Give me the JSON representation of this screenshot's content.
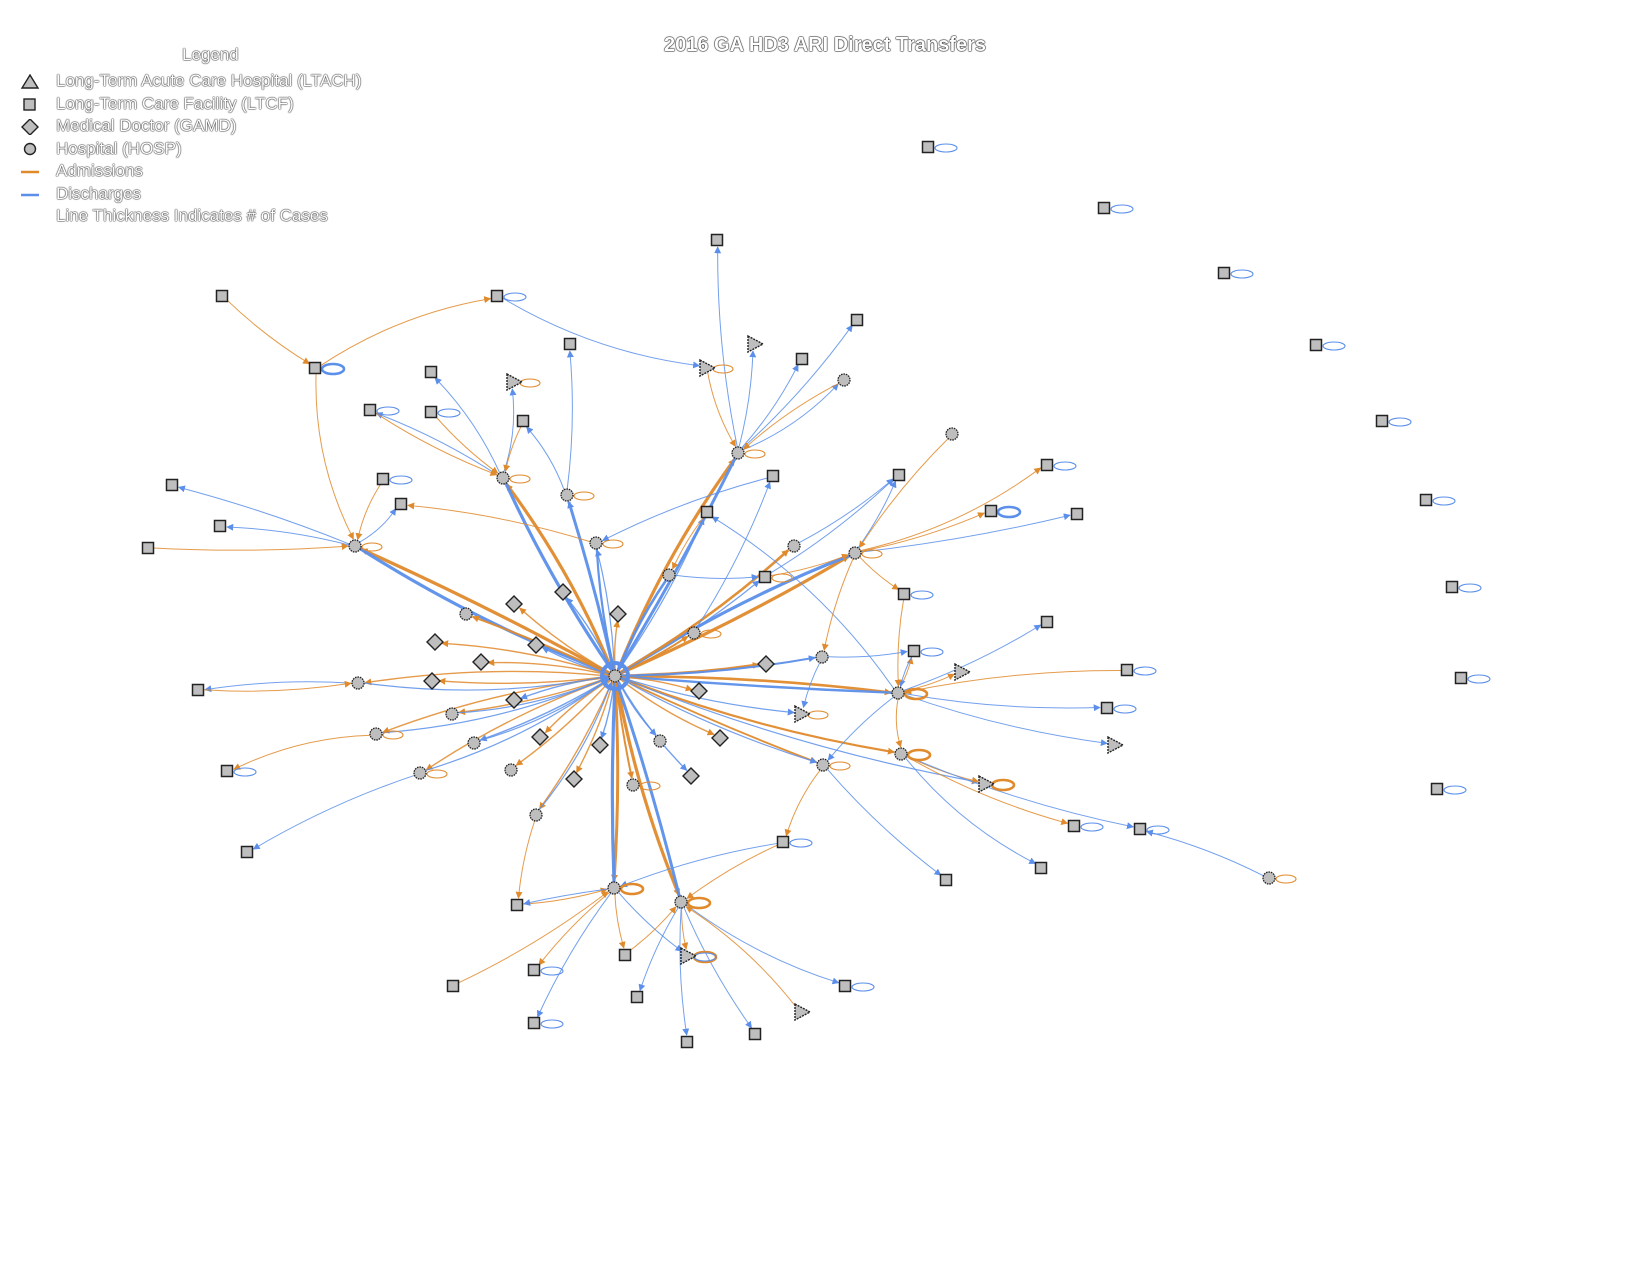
{
  "title": "2016 GA HD3 ARI Direct Transfers",
  "legend": {
    "title": "Legend",
    "items": [
      {
        "symbol": "triangle",
        "label": "Long-Term Acute Care Hospital (LTACH)"
      },
      {
        "symbol": "square",
        "label": "Long-Term Care Facility (LTCF)"
      },
      {
        "symbol": "diamond",
        "label": "Medical Doctor (GAMD)"
      },
      {
        "symbol": "circle",
        "label": "Hospital (HOSP)"
      },
      {
        "symbol": "orange-line",
        "label": "Admissions"
      },
      {
        "symbol": "blue-line",
        "label": "Discharges"
      },
      {
        "symbol": "none",
        "label": "Line Thickness Indicates # of Cases"
      }
    ]
  },
  "colors": {
    "admissions": "#E08A2C",
    "discharges": "#5B8FEA",
    "node_fill": "#BEBEBE",
    "node_stroke": "#222222"
  }
}
